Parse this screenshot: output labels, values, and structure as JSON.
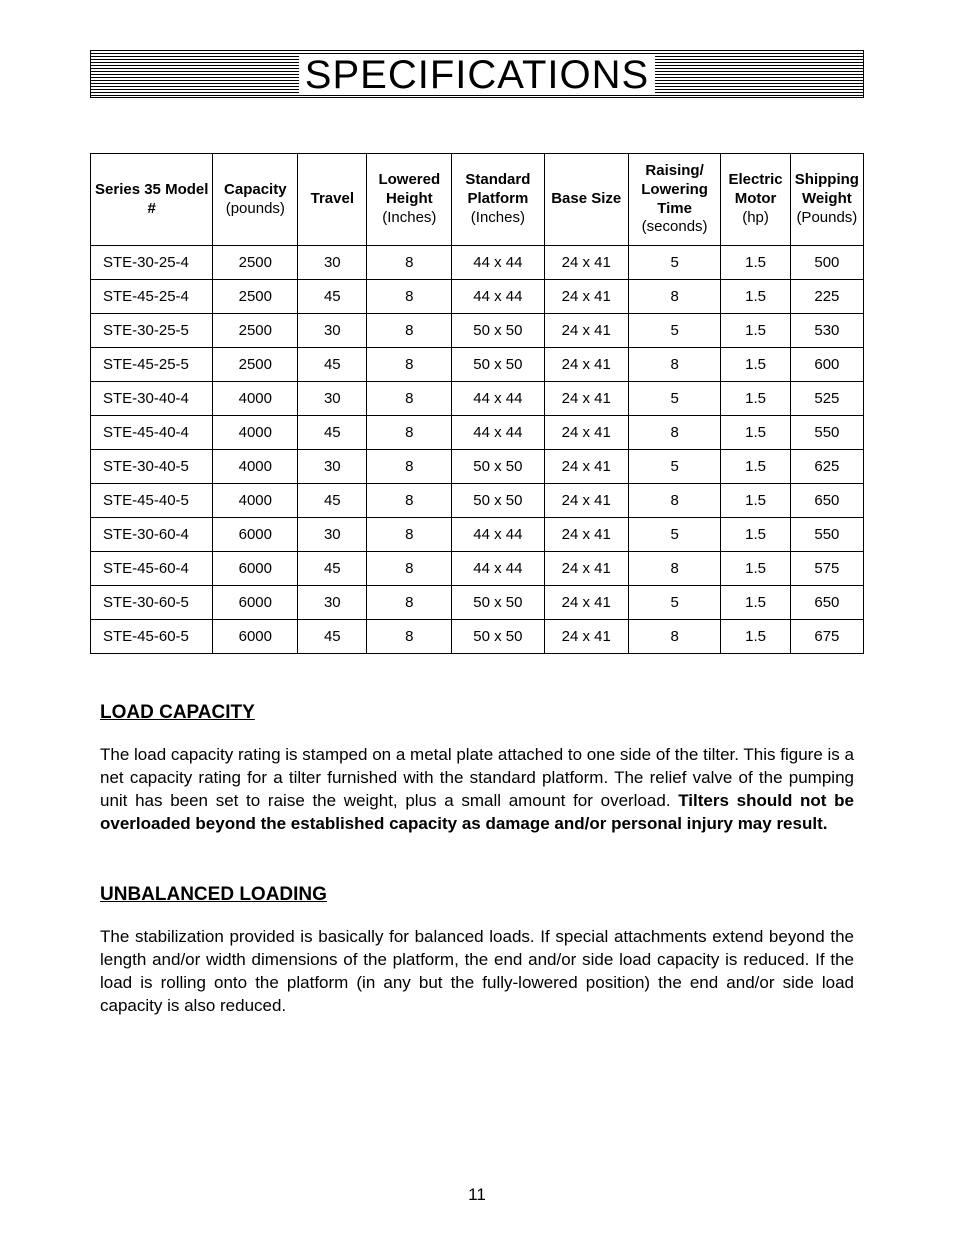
{
  "title": "SPECIFICATIONS",
  "table": {
    "type": "table",
    "columns": [
      {
        "main": "Series 35 Model #",
        "sub": ""
      },
      {
        "main": "Capacity",
        "sub": "(pounds)"
      },
      {
        "main": "Travel",
        "sub": ""
      },
      {
        "main": "Lowered Height",
        "sub": "(Inches)"
      },
      {
        "main": "Standard Platform",
        "sub": "(Inches)"
      },
      {
        "main": "Base Size",
        "sub": ""
      },
      {
        "main": "Raising/ Lowering Time",
        "sub": "(seconds)"
      },
      {
        "main": "Electric Motor",
        "sub": "(hp)"
      },
      {
        "main": "Shipping Weight",
        "sub": "(Pounds)"
      }
    ],
    "rows": [
      [
        "STE-30-25-4",
        "2500",
        "30",
        "8",
        "44 x 44",
        "24 x 41",
        "5",
        "1.5",
        "500"
      ],
      [
        "STE-45-25-4",
        "2500",
        "45",
        "8",
        "44 x 44",
        "24 x 41",
        "8",
        "1.5",
        "225"
      ],
      [
        "STE-30-25-5",
        "2500",
        "30",
        "8",
        "50 x 50",
        "24 x 41",
        "5",
        "1.5",
        "530"
      ],
      [
        "STE-45-25-5",
        "2500",
        "45",
        "8",
        "50 x 50",
        "24 x 41",
        "8",
        "1.5",
        "600"
      ],
      [
        "STE-30-40-4",
        "4000",
        "30",
        "8",
        "44 x 44",
        "24 x 41",
        "5",
        "1.5",
        "525"
      ],
      [
        "STE-45-40-4",
        "4000",
        "45",
        "8",
        "44 x 44",
        "24 x 41",
        "8",
        "1.5",
        "550"
      ],
      [
        "STE-30-40-5",
        "4000",
        "30",
        "8",
        "50 x 50",
        "24 x 41",
        "5",
        "1.5",
        "625"
      ],
      [
        "STE-45-40-5",
        "4000",
        "45",
        "8",
        "50 x 50",
        "24 x 41",
        "8",
        "1.5",
        "650"
      ],
      [
        "STE-30-60-4",
        "6000",
        "30",
        "8",
        "44 x 44",
        "24 x 41",
        "5",
        "1.5",
        "550"
      ],
      [
        "STE-45-60-4",
        "6000",
        "45",
        "8",
        "44 x 44",
        "24 x 41",
        "8",
        "1.5",
        "575"
      ],
      [
        "STE-30-60-5",
        "6000",
        "30",
        "8",
        "50 x 50",
        "24 x 41",
        "5",
        "1.5",
        "650"
      ],
      [
        "STE-45-60-5",
        "6000",
        "45",
        "8",
        "50 x 50",
        "24 x 41",
        "8",
        "1.5",
        "675"
      ]
    ]
  },
  "sections": {
    "load": {
      "heading": "LOAD CAPACITY",
      "body_plain": "The load capacity rating is stamped on a metal plate attached to one side of the tilter.  This figure is a net capacity rating for a tilter furnished with the standard platform.  The relief valve of the pumping unit has been set to raise the weight, plus a small amount for overload.  ",
      "body_bold": "Tilters should not be overloaded beyond the established capacity as damage and/or personal injury may result."
    },
    "unbalanced": {
      "heading": "UNBALANCED LOADING",
      "body": "The stabilization provided is basically for balanced loads.  If special attachments extend beyond the length and/or width dimensions of the platform, the end and/or side load capacity is reduced.  If the load is rolling onto the platform (in any but the fully-lowered position) the end and/or side load capacity is also reduced."
    }
  },
  "page_number": "11",
  "colors": {
    "text": "#000000",
    "background": "#ffffff",
    "border": "#000000"
  },
  "fonts": {
    "title_size_pt": 40,
    "header_size_pt": 15,
    "body_size_pt": 17,
    "heading_size_pt": 19
  }
}
